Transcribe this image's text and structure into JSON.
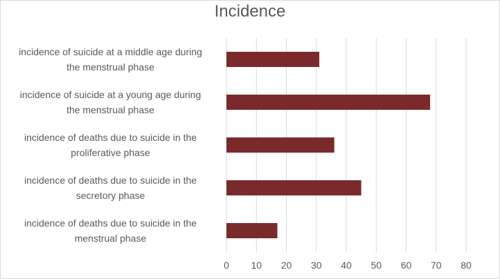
{
  "chart_data": {
    "type": "bar",
    "orientation": "horizontal",
    "title": "Incidence",
    "categories": [
      "incidence of suicide at a middle age during the menstrual phase",
      "incidence of suicide at a young age during the menstrual phase",
      "incidence of deaths due to suicide in the proliferative phase",
      "incidence of deaths due to suicide in the secretory phase",
      "incidence of deaths due to suicide in the menstrual phase"
    ],
    "category_lines": [
      [
        "incidence of suicide at a middle age during",
        "the menstrual phase"
      ],
      [
        "incidence of suicide at a young age during",
        "the menstrual phase"
      ],
      [
        "incidence of deaths due to suicide in the",
        "proliferative phase"
      ],
      [
        "incidence of deaths due to suicide in the",
        "secretory phase"
      ],
      [
        "incidence of deaths due to suicide in the",
        "menstrual phase"
      ]
    ],
    "values": [
      31,
      68,
      36,
      45,
      17
    ],
    "xlim": [
      0,
      80
    ],
    "xticks": [
      0,
      10,
      20,
      30,
      40,
      50,
      60,
      70,
      80
    ],
    "grid": true,
    "legend": false,
    "bar_color": "#7b2a2c"
  }
}
